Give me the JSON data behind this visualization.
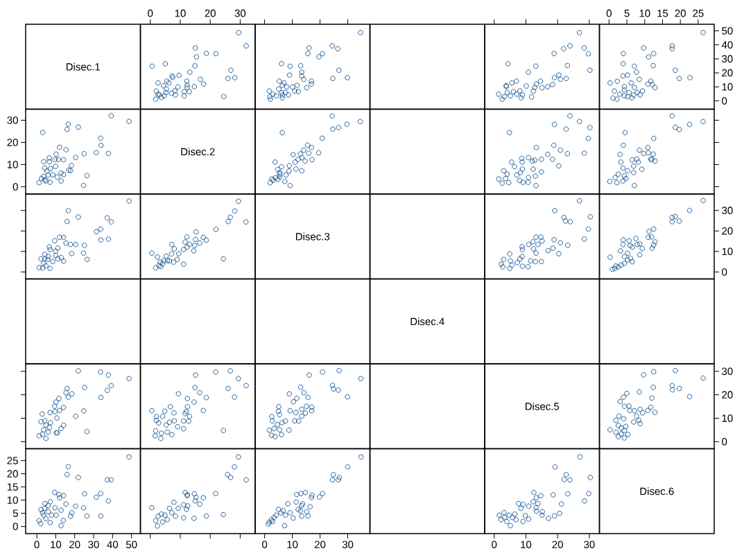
{
  "chart_data": [
    {
      "type": "other",
      "title": "Disec.1"
    },
    {
      "type": "scatter",
      "marker": "circle",
      "color": "#0b4f8f",
      "xlim": [
        -3.3,
        35
      ],
      "ylim": [
        -5.9,
        54.7
      ],
      "xticks": [
        0,
        10,
        20,
        30
      ],
      "tick_labels": "x",
      "x": [
        32.0,
        29.5,
        24.5,
        28.2,
        25.9,
        26.9,
        21.9,
        18.7,
        17.8,
        16.7,
        14.9,
        15.4,
        15.0,
        13.2,
        14.7,
        13.0,
        12.3,
        12.3,
        12.2,
        11.3,
        11.3,
        9.2,
        9.6,
        7.5,
        7.3,
        5.0,
        0.6,
        6.2,
        5.5,
        2.6,
        8.4,
        8.2,
        7.1,
        5.4,
        4.4,
        4.7,
        3.7,
        1.8,
        2.6,
        2.0,
        5.2,
        3.1
      ],
      "values": [
        39.3,
        48.7,
        3.1,
        16.6,
        16.0,
        21.9,
        33.7,
        33.9,
        12.0,
        15.4,
        25.0,
        31.4,
        37.8,
        20.5,
        10.2,
        6.5,
        9.6,
        11.4,
        14.1,
        3.6,
        6.6,
        9.9,
        18.3,
        16.8,
        17.8,
        26.5,
        24.7,
        12.8,
        14.1,
        12.8,
        4.2,
        7.2,
        5.4,
        8.4,
        10.8,
        3.6,
        2.4,
        1.2,
        4.8,
        7.0,
        6.0,
        4.2
      ]
    },
    {
      "type": "scatter",
      "marker": "circle",
      "color": "#0b4f8f",
      "xlim": [
        -3.4,
        38
      ],
      "ylim": [
        -5.9,
        54.7
      ],
      "xticks": [
        0,
        10,
        20,
        30
      ],
      "tick_labels": false,
      "x": [
        34.6,
        29.9,
        24.6,
        26.8,
        26.4,
        24.4,
        20.9,
        19.6,
        15.6,
        16.0,
        16.9,
        16.9,
        15.2,
        14.1,
        13.4,
        13.4,
        13.0,
        11.7,
        12.2,
        10.9,
        10.1,
        9.0,
        9.2,
        6.1,
        8.0,
        7.0,
        5.3,
        6.4,
        8.6,
        6.4,
        6.1,
        4.2,
        2.1,
        1.7,
        3.0,
        5.1,
        1.9,
        7.5,
        6.4
      ],
      "values": [
        48.7,
        16.6,
        16.0,
        21.9,
        37.2,
        39.3,
        33.7,
        31.5,
        33.8,
        37.8,
        12.0,
        14.1,
        9.4,
        15.4,
        17.8,
        20.5,
        25.1,
        11.1,
        6.6,
        7.0,
        9.9,
        18.4,
        24.7,
        26.6,
        10.0,
        12.9,
        14.1,
        11.1,
        4.2,
        2.2,
        5.8,
        3.6,
        1.2,
        7.0,
        4.8,
        8.4,
        3.0,
        6.0,
        4.2
      ]
    },
    {
      "type": "scatter",
      "marker": "circle",
      "color": "#0b4f8f",
      "xlim": [
        -3,
        33.2
      ],
      "ylim": [
        -5.9,
        54.7
      ],
      "xticks": [
        0,
        10,
        20,
        30
      ],
      "tick_labels": false,
      "x": [
        30.2,
        29.7,
        28.4,
        26.9,
        23.9,
        21.9,
        18.9,
        23.1,
        22.7,
        20.9,
        20.4,
        19.0,
        18.4,
        16.9,
        15.1,
        14.6,
        13.3,
        12.4,
        12.8,
        11.8,
        10.8,
        13.1,
        10.1,
        8.5,
        8.1,
        7.1,
        7.0,
        5.6,
        3.8,
        3.8,
        4.3,
        5.1,
        2.5,
        1.4,
        3.2,
        4.1,
        8.9,
        6.1
      ],
      "values": [
        21.9,
        33.6,
        37.8,
        48.7,
        39.3,
        37.2,
        33.8,
        25.2,
        16.0,
        15.4,
        18.5,
        16.6,
        11.7,
        10.1,
        9.4,
        14.1,
        12.0,
        7.0,
        9.6,
        2.8,
        20.5,
        24.8,
        10.6,
        2.2,
        7.2,
        4.8,
        14.1,
        12.8,
        10.8,
        10.3,
        26.5,
        3.6,
        1.2,
        4.8,
        3.0,
        6.0,
        4.2,
        6.6
      ]
    },
    {
      "type": "scatter",
      "marker": "circle",
      "color": "#0b4f8f",
      "xlim": [
        -2.7,
        29.5
      ],
      "ylim": [
        -5.9,
        54.7
      ],
      "xticks": [
        0,
        5,
        10,
        15,
        20,
        25
      ],
      "yticks": [
        0,
        10,
        20,
        30,
        40,
        50
      ],
      "x": [
        26.4,
        22.7,
        19.7,
        18.6,
        17.7,
        17.7,
        12.9,
        12.1,
        11.7,
        10.9,
        12.4,
        11.1,
        12.5,
        9.7,
        9.4,
        8.7,
        8.5,
        7.7,
        7.1,
        6.4,
        7.9,
        7.1,
        6.2,
        5.2,
        3.9,
        4.0,
        4.0,
        2.3,
        0.3,
        4.3,
        4.3,
        2.2,
        1.1,
        1.5,
        4.3,
        3.0,
        5.2,
        5.6,
        6.9
      ],
      "values": [
        48.7,
        16.6,
        16.0,
        21.9,
        37.2,
        39.3,
        9.4,
        11.7,
        14.1,
        12.0,
        25.2,
        31.4,
        33.7,
        37.8,
        7.1,
        4.3,
        15.4,
        20.5,
        24.7,
        2.2,
        6.0,
        9.6,
        12.8,
        18.5,
        17.8,
        26.5,
        33.8,
        14.0,
        12.8,
        10.2,
        7.8,
        1.2,
        2.0,
        7.0,
        3.6,
        4.8,
        3.0,
        6.0,
        4.2
      ]
    },
    {
      "type": "scatter",
      "marker": "circle",
      "color": "#0b4f8f",
      "xlim": [
        -5.9,
        54.7
      ],
      "ylim": [
        -3.3,
        35
      ],
      "yticks": [
        0,
        10,
        20,
        30
      ],
      "tick_labels": "y",
      "x": [
        39.3,
        48.7,
        3.1,
        16.6,
        16.0,
        21.9,
        33.7,
        33.9,
        12.0,
        15.4,
        25.0,
        31.4,
        37.8,
        20.5,
        10.2,
        6.5,
        9.6,
        11.4,
        14.1,
        3.6,
        6.6,
        9.9,
        18.3,
        16.8,
        17.8,
        26.5,
        24.7,
        12.8,
        14.1,
        12.8,
        4.2,
        7.2,
        5.4,
        8.4,
        10.8,
        3.6,
        2.4,
        1.2,
        4.8,
        7.0,
        6.0,
        4.2
      ],
      "values": [
        32.0,
        29.5,
        24.5,
        28.2,
        25.9,
        26.9,
        21.9,
        18.7,
        17.8,
        16.7,
        14.9,
        15.4,
        15.0,
        13.2,
        14.7,
        13.0,
        12.3,
        12.3,
        12.2,
        11.3,
        11.3,
        9.2,
        9.6,
        7.5,
        7.3,
        5.0,
        0.6,
        6.2,
        5.5,
        2.6,
        8.4,
        8.2,
        7.1,
        5.4,
        4.4,
        4.7,
        3.7,
        1.8,
        2.6,
        2.0,
        5.2,
        3.1
      ]
    },
    {
      "type": "other",
      "title": "Disec.2"
    },
    {
      "type": "scatter",
      "marker": "circle",
      "color": "#0b4f8f",
      "xlim": [
        -3.4,
        38
      ],
      "ylim": [
        -3.3,
        35
      ],
      "x": [
        34.5,
        29.7,
        26.7,
        24.6,
        24.4,
        20.8,
        19.5,
        17.1,
        16.9,
        15.5,
        15.9,
        14.6,
        13.5,
        14.1,
        13.4,
        12.9,
        12.1,
        11.3,
        10.3,
        11.0,
        9.2,
        8.9,
        8.8,
        7.3,
        7.7,
        6.1,
        6.4,
        5.4,
        5.4,
        4.8,
        3.8,
        4.8,
        3.1,
        2.0,
        2.6,
        5.6,
        4.0
      ],
      "values": [
        29.4,
        28.2,
        26.7,
        26.0,
        31.9,
        21.9,
        15.3,
        12.2,
        17.7,
        18.7,
        15.1,
        11.6,
        13.1,
        16.5,
        7.2,
        14.8,
        12.3,
        8.0,
        14.5,
        11.1,
        0.5,
        9.5,
        7.1,
        2.4,
        5.3,
        9.0,
        24.4,
        4.5,
        6.4,
        7.8,
        11.1,
        3.3,
        2.9,
        1.8,
        3.5,
        5.7,
        4.1
      ]
    },
    {
      "type": "scatter",
      "marker": "circle",
      "color": "#0b4f8f",
      "xlim": [
        -3,
        33.2
      ],
      "ylim": [
        -3.3,
        35
      ],
      "x": [
        29.7,
        30.2,
        26.9,
        23.9,
        28.4,
        22.7,
        19.0,
        23.1,
        20.9,
        18.8,
        20.4,
        18.4,
        16.9,
        14.9,
        14.9,
        13.3,
        13.2,
        13.0,
        12.3,
        12.0,
        12.8,
        10.7,
        10.8,
        10.8,
        8.8,
        8.7,
        9.1,
        8.0,
        7.1,
        8.3,
        8.9,
        6.4,
        5.5,
        4.8,
        4.6,
        3.6,
        4.1,
        3.0,
        2.5,
        1.4
      ],
      "values": [
        21.8,
        26.7,
        29.4,
        32.0,
        15.1,
        26.0,
        28.1,
        14.9,
        16.5,
        18.7,
        9.4,
        12.4,
        14.6,
        6.7,
        12.4,
        17.7,
        0.5,
        4.8,
        7.9,
        11.6,
        12.0,
        2.0,
        4.1,
        13.1,
        11.1,
        12.8,
        2.0,
        2.8,
        5.3,
        6.4,
        8.0,
        9.1,
        11.1,
        24.4,
        1.8,
        3.7,
        5.7,
        7.2,
        1.6,
        3.5
      ]
    },
    {
      "type": "scatter",
      "marker": "circle",
      "color": "#0b4f8f",
      "xlim": [
        -2.7,
        29.5
      ],
      "ylim": [
        -3.3,
        35
      ],
      "yticks": [
        0,
        10,
        20,
        30
      ],
      "tick_labels": false,
      "x": [
        26.4,
        22.6,
        19.7,
        18.6,
        17.7,
        12.5,
        12.9,
        12.0,
        12.4,
        11.7,
        11.0,
        10.9,
        9.2,
        9.7,
        8.5,
        7.1,
        8.2,
        7.8,
        6.5,
        6.9,
        6.9,
        4.5,
        4.0,
        3.1,
        3.3,
        5.2,
        4.3,
        3.9,
        4.7,
        2.6,
        2.2,
        0.2,
        1.7,
        3.9
      ],
      "values": [
        29.4,
        28.1,
        25.8,
        26.8,
        32.0,
        21.8,
        11.6,
        12.4,
        14.7,
        12.3,
        15.3,
        17.7,
        7.9,
        15.0,
        16.5,
        0.5,
        11.1,
        12.5,
        12.1,
        9.3,
        6.4,
        24.4,
        18.7,
        14.6,
        11.1,
        7.2,
        4.9,
        2.6,
        3.7,
        5.7,
        1.8,
        2.4,
        4.1,
        8.4
      ]
    },
    {
      "type": "scatter",
      "marker": "circle",
      "color": "#0b4f8f",
      "xlim": [
        -5.9,
        54.7
      ],
      "ylim": [
        -3.4,
        38
      ],
      "yticks": [
        0,
        10,
        20,
        30
      ],
      "tick_labels": false,
      "x": [
        48.7,
        16.6,
        16.0,
        21.9,
        37.2,
        39.3,
        33.7,
        31.5,
        33.8,
        37.8,
        12.0,
        14.1,
        9.4,
        15.4,
        17.8,
        20.5,
        25.1,
        11.1,
        6.6,
        7.0,
        9.9,
        18.4,
        24.7,
        26.6,
        10.0,
        12.9,
        14.1,
        11.1,
        4.2,
        2.2,
        5.8,
        3.6,
        1.2,
        7.0,
        4.8,
        8.4,
        3.0,
        6.0,
        4.2
      ],
      "values": [
        34.6,
        29.9,
        24.6,
        26.8,
        26.4,
        24.4,
        20.9,
        19.6,
        15.6,
        16.0,
        16.9,
        16.9,
        15.2,
        14.1,
        13.4,
        13.4,
        13.0,
        11.7,
        12.2,
        10.9,
        10.1,
        9.0,
        9.2,
        6.1,
        8.0,
        7.0,
        5.3,
        6.4,
        8.6,
        6.4,
        6.1,
        4.2,
        2.1,
        1.7,
        3.0,
        5.1,
        1.9,
        7.5,
        6.4
      ]
    },
    {
      "type": "scatter",
      "marker": "circle",
      "color": "#0b4f8f",
      "xlim": [
        -3.3,
        35
      ],
      "ylim": [
        -3.4,
        38
      ],
      "x": [
        29.4,
        28.2,
        26.7,
        26.0,
        31.9,
        21.9,
        15.3,
        12.2,
        17.7,
        18.7,
        15.1,
        11.6,
        13.1,
        16.5,
        7.2,
        14.8,
        12.3,
        8.0,
        14.5,
        11.1,
        0.5,
        9.5,
        7.1,
        2.4,
        5.3,
        9.0,
        24.4,
        4.5,
        6.4,
        7.8,
        11.1,
        3.3,
        2.9,
        1.8,
        3.5,
        5.7,
        4.1
      ],
      "values": [
        34.5,
        29.7,
        26.7,
        24.6,
        24.4,
        20.8,
        19.5,
        17.1,
        16.9,
        15.5,
        15.9,
        14.6,
        13.5,
        14.1,
        13.4,
        12.9,
        12.1,
        11.3,
        10.3,
        11.0,
        9.2,
        8.9,
        8.8,
        7.3,
        7.7,
        6.1,
        6.4,
        5.4,
        5.4,
        4.8,
        3.8,
        4.8,
        3.1,
        2.0,
        2.6,
        5.6,
        4.0
      ]
    },
    {
      "type": "other",
      "title": "Disec.3"
    },
    {
      "type": "scatter",
      "marker": "circle",
      "color": "#0b4f8f",
      "xlim": [
        -3,
        33.2
      ],
      "ylim": [
        -3.4,
        38
      ],
      "x": [
        30.3,
        29.7,
        28.4,
        26.9,
        24.0,
        22.5,
        22.0,
        19.1,
        23.2,
        20.9,
        20.4,
        18.9,
        18.5,
        17.0,
        15.1,
        14.7,
        14.9,
        13.2,
        12.4,
        13.8,
        13.2,
        12.2,
        13.0,
        10.7,
        11.5,
        10.9,
        8.9,
        8.8,
        8.9,
        8.8,
        7.3,
        8.1,
        4.9,
        4.9,
        5.6,
        2.7,
        2.2,
        3.0,
        5.1
      ],
      "values": [
        26.9,
        20.9,
        16.1,
        34.7,
        24.5,
        24.8,
        26.6,
        29.9,
        13.0,
        14.2,
        8.9,
        15.7,
        11.6,
        10.4,
        15.1,
        17.0,
        5.1,
        9.2,
        11.3,
        13.4,
        17.0,
        14.7,
        5.0,
        2.6,
        5.4,
        13.4,
        10.9,
        12.3,
        2.8,
        7.5,
        4.6,
        6.3,
        8.8,
        1.7,
        3.4,
        2.5,
        3.8,
        6.1,
        5.4
      ]
    },
    {
      "type": "scatter",
      "marker": "circle",
      "color": "#0b4f8f",
      "xlim": [
        -2.7,
        29.5
      ],
      "ylim": [
        -3.4,
        38
      ],
      "yticks": [
        0,
        10,
        20,
        30
      ],
      "tick_labels": "y",
      "x": [
        26.4,
        22.6,
        19.7,
        17.7,
        18.6,
        17.7,
        12.5,
        11.2,
        11.9,
        11.0,
        12.9,
        12.5,
        12.1,
        9.3,
        8.6,
        7.9,
        7.5,
        8.6,
        6.5,
        5.9,
        5.6,
        4.0,
        3.9,
        3.2,
        0.3,
        5.2,
        6.0,
        6.5,
        5.2,
        4.3,
        3.4,
        2.6,
        1.6,
        0.9,
        1.9,
        4.3
      ],
      "values": [
        34.8,
        30.0,
        24.8,
        24.5,
        27.0,
        26.6,
        20.9,
        19.8,
        17.1,
        16.9,
        14.7,
        13.1,
        11.6,
        11.4,
        13.7,
        13.4,
        16.4,
        8.4,
        12.1,
        12.9,
        15.2,
        15.7,
        13.4,
        10.3,
        7.2,
        9.2,
        6.7,
        5.0,
        5.9,
        4.2,
        3.4,
        2.5,
        1.7,
        1.3,
        2.9,
        7.5
      ]
    },
    {
      "type": "other",
      "title": "Disec.4"
    },
    {
      "type": "scatter",
      "marker": "circle",
      "color": "#0b4f8f",
      "xlim": [
        -5.9,
        54.7
      ],
      "ylim": [
        -3,
        33.2
      ],
      "yticks": [
        0,
        10,
        20,
        30
      ],
      "tick_labels": false,
      "x": [
        21.9,
        33.6,
        37.8,
        48.7,
        39.3,
        37.2,
        33.8,
        25.2,
        16.0,
        15.4,
        18.5,
        16.6,
        11.7,
        10.1,
        9.4,
        14.1,
        12.0,
        7.0,
        9.6,
        2.8,
        20.5,
        24.8,
        10.6,
        2.2,
        7.2,
        4.8,
        14.1,
        12.8,
        10.8,
        10.3,
        26.5,
        3.6,
        1.2,
        4.8,
        3.0,
        6.0,
        4.2,
        6.6
      ],
      "values": [
        30.2,
        29.7,
        28.4,
        26.9,
        23.9,
        21.9,
        18.9,
        23.1,
        22.7,
        20.9,
        20.4,
        19.0,
        18.4,
        16.9,
        15.1,
        14.6,
        13.3,
        12.4,
        12.8,
        11.8,
        10.8,
        13.1,
        10.1,
        8.5,
        8.1,
        7.1,
        7.0,
        5.6,
        3.8,
        3.8,
        4.3,
        5.1,
        2.5,
        1.4,
        3.2,
        4.1,
        8.9,
        6.1
      ]
    },
    {
      "type": "scatter",
      "marker": "circle",
      "color": "#0b4f8f",
      "xlim": [
        -3.3,
        35
      ],
      "ylim": [
        -3,
        33.2
      ],
      "x": [
        21.8,
        26.7,
        29.4,
        32.0,
        15.1,
        26.0,
        28.1,
        14.9,
        16.5,
        18.7,
        9.4,
        12.4,
        14.6,
        6.7,
        12.4,
        17.7,
        0.5,
        4.8,
        7.9,
        11.6,
        12.0,
        2.0,
        4.1,
        13.1,
        11.1,
        12.8,
        2.0,
        2.8,
        5.3,
        6.4,
        8.0,
        9.1,
        11.1,
        24.4,
        1.8,
        3.7,
        5.7,
        7.2,
        1.6,
        3.5
      ],
      "values": [
        29.7,
        30.2,
        26.9,
        23.9,
        28.4,
        22.7,
        19.0,
        23.1,
        20.9,
        18.8,
        20.4,
        18.4,
        16.9,
        14.9,
        14.9,
        13.3,
        13.2,
        13.0,
        12.3,
        12.0,
        12.8,
        10.7,
        10.8,
        10.8,
        8.8,
        8.7,
        9.1,
        8.0,
        7.1,
        8.3,
        8.9,
        6.4,
        5.5,
        4.8,
        4.6,
        3.6,
        4.1,
        3.0,
        2.5,
        1.4
      ]
    },
    {
      "type": "scatter",
      "marker": "circle",
      "color": "#0b4f8f",
      "xlim": [
        -3.4,
        38
      ],
      "ylim": [
        -3,
        33.2
      ],
      "x": [
        26.9,
        20.9,
        16.1,
        34.7,
        24.5,
        24.8,
        26.6,
        29.9,
        13.0,
        14.2,
        8.9,
        15.7,
        11.6,
        10.4,
        15.1,
        17.0,
        5.1,
        9.2,
        11.3,
        13.4,
        17.0,
        14.7,
        5.0,
        2.6,
        5.4,
        13.4,
        10.9,
        12.3,
        2.8,
        7.5,
        4.6,
        6.3,
        8.8,
        1.7,
        3.4,
        2.5,
        3.8,
        6.1,
        5.4
      ],
      "values": [
        30.3,
        29.7,
        28.4,
        26.9,
        24.0,
        22.5,
        22.0,
        19.1,
        23.2,
        20.9,
        20.4,
        18.9,
        18.5,
        17.0,
        15.1,
        14.7,
        14.9,
        13.2,
        12.4,
        13.8,
        13.2,
        12.2,
        13.0,
        10.7,
        11.5,
        10.9,
        8.9,
        8.8,
        8.9,
        8.8,
        7.3,
        8.1,
        4.9,
        4.9,
        5.6,
        2.7,
        2.2,
        3.0,
        5.1
      ]
    },
    {
      "type": "other",
      "title": "Disec.5"
    },
    {
      "type": "scatter",
      "marker": "circle",
      "color": "#0b4f8f",
      "xlim": [
        -2.7,
        29.5
      ],
      "ylim": [
        -3,
        33.2
      ],
      "yticks": [
        0,
        10,
        20,
        30
      ],
      "tick_labels": "y",
      "x": [
        26.4,
        22.6,
        18.6,
        19.7,
        17.8,
        17.7,
        12.9,
        11.7,
        12.0,
        12.4,
        12.5,
        9.7,
        10.9,
        9.4,
        8.7,
        8.5,
        8.7,
        8.4,
        7.7,
        7.1,
        6.9,
        5.8,
        5.6,
        4.3,
        5.0,
        4.0,
        3.1,
        4.1,
        2.8,
        1.9,
        0.3,
        4.3,
        2.6,
        3.4,
        4.3,
        4.7,
        1.9,
        2.6,
        3.4,
        5.3
      ],
      "values": [
        27.1,
        19.2,
        30.3,
        22.7,
        22.1,
        23.9,
        12.5,
        14.7,
        18.6,
        23.2,
        29.8,
        28.5,
        13.3,
        12.3,
        13.8,
        21.2,
        7.7,
        9.1,
        10.9,
        13.2,
        8.4,
        13.3,
        15.2,
        15.1,
        20.6,
        19.0,
        17.1,
        9.8,
        10.9,
        9.1,
        5.1,
        1.6,
        2.2,
        3.3,
        4.7,
        6.5,
        4.0,
        6.9,
        5.8,
        3.1
      ]
    },
    {
      "type": "scatter",
      "marker": "circle",
      "color": "#0b4f8f",
      "xlim": [
        -5.9,
        54.7
      ],
      "ylim": [
        -2.7,
        29.5
      ],
      "xticks": [
        0,
        10,
        20,
        30,
        40,
        50
      ],
      "yticks": [
        0,
        5,
        10,
        15,
        20,
        25
      ],
      "x": [
        48.7,
        16.6,
        16.0,
        21.9,
        37.2,
        39.3,
        9.4,
        11.7,
        14.1,
        12.0,
        25.2,
        31.4,
        33.7,
        37.8,
        7.1,
        4.3,
        15.4,
        20.5,
        24.7,
        2.2,
        6.0,
        9.6,
        12.8,
        18.5,
        17.8,
        26.5,
        33.8,
        14.0,
        12.8,
        10.2,
        7.8,
        1.2,
        2.0,
        7.0,
        3.6,
        4.8,
        3.0,
        6.0,
        4.2
      ],
      "values": [
        26.4,
        22.7,
        19.7,
        18.6,
        17.7,
        17.7,
        12.9,
        12.1,
        11.7,
        10.9,
        12.4,
        11.1,
        12.5,
        9.7,
        9.4,
        8.7,
        8.5,
        7.7,
        7.1,
        6.4,
        7.9,
        7.1,
        6.2,
        5.2,
        3.9,
        4.0,
        4.0,
        2.3,
        0.3,
        4.3,
        4.3,
        2.2,
        1.1,
        1.5,
        4.3,
        3.0,
        5.2,
        5.6,
        6.9
      ]
    },
    {
      "type": "scatter",
      "marker": "circle",
      "color": "#0b4f8f",
      "xlim": [
        -3.3,
        35
      ],
      "ylim": [
        -2.7,
        29.5
      ],
      "xticks": [
        0,
        10,
        20,
        30
      ],
      "tick_labels": false,
      "x": [
        29.4,
        28.1,
        25.8,
        26.8,
        32.0,
        21.8,
        11.6,
        12.4,
        14.7,
        12.3,
        15.3,
        17.7,
        7.9,
        15.0,
        16.5,
        0.5,
        11.1,
        12.5,
        12.1,
        9.3,
        6.4,
        24.4,
        18.7,
        14.6,
        11.1,
        7.2,
        4.9,
        2.6,
        3.7,
        5.7,
        1.8,
        2.4,
        4.1,
        8.4
      ],
      "values": [
        26.4,
        22.6,
        19.7,
        18.6,
        17.7,
        12.5,
        12.9,
        12.0,
        12.4,
        11.7,
        11.0,
        10.9,
        9.2,
        9.7,
        8.5,
        7.1,
        8.2,
        7.8,
        6.5,
        6.9,
        6.9,
        4.5,
        4.0,
        3.1,
        3.3,
        5.2,
        4.3,
        3.9,
        4.7,
        2.6,
        2.2,
        0.2,
        1.7,
        3.9
      ]
    },
    {
      "type": "scatter",
      "marker": "circle",
      "color": "#0b4f8f",
      "xlim": [
        -3.4,
        38
      ],
      "ylim": [
        -2.7,
        29.5
      ],
      "xticks": [
        0,
        10,
        20,
        30
      ],
      "tick_labels": "x",
      "x": [
        34.8,
        30.0,
        24.8,
        24.5,
        27.0,
        26.6,
        20.9,
        19.8,
        17.1,
        16.9,
        14.7,
        13.1,
        11.6,
        11.4,
        13.7,
        13.4,
        16.4,
        8.4,
        12.1,
        12.9,
        15.2,
        15.7,
        13.4,
        10.3,
        7.2,
        9.2,
        6.7,
        5.0,
        5.9,
        4.2,
        3.4,
        2.5,
        1.7,
        1.3,
        2.9,
        7.5
      ],
      "values": [
        26.4,
        22.6,
        19.7,
        17.7,
        18.6,
        17.7,
        12.5,
        11.2,
        11.9,
        11.0,
        12.9,
        12.5,
        12.1,
        9.3,
        8.6,
        7.9,
        7.5,
        8.6,
        6.5,
        5.9,
        5.6,
        4.0,
        3.9,
        3.2,
        0.3,
        5.2,
        6.0,
        6.5,
        5.2,
        4.3,
        3.4,
        2.6,
        1.6,
        0.9,
        1.9,
        4.3
      ]
    },
    {
      "type": "scatter",
      "marker": "circle",
      "color": "#0b4f8f",
      "xlim": [
        -3,
        33.2
      ],
      "ylim": [
        -2.7,
        29.5
      ],
      "xticks": [
        0,
        10,
        20,
        30
      ],
      "tick_labels": "x",
      "x": [
        27.1,
        19.2,
        30.3,
        22.7,
        22.1,
        23.9,
        12.5,
        14.7,
        18.6,
        23.2,
        29.8,
        28.5,
        13.3,
        12.3,
        13.8,
        21.2,
        7.7,
        9.1,
        10.9,
        13.2,
        8.4,
        13.3,
        15.2,
        15.1,
        20.6,
        19.0,
        17.1,
        9.8,
        10.9,
        9.1,
        5.1,
        1.6,
        2.2,
        3.3,
        4.7,
        6.5,
        4.0,
        6.9,
        5.8,
        3.1
      ],
      "values": [
        26.4,
        22.6,
        18.6,
        19.7,
        17.8,
        17.7,
        12.9,
        11.7,
        12.0,
        12.4,
        12.5,
        9.7,
        10.9,
        9.4,
        8.7,
        8.5,
        8.7,
        8.4,
        7.7,
        7.1,
        6.9,
        5.8,
        5.6,
        4.3,
        5.0,
        4.0,
        3.1,
        4.1,
        2.8,
        1.9,
        0.3,
        4.3,
        2.6,
        3.4,
        4.3,
        4.7,
        1.9,
        2.6,
        3.4,
        5.3
      ]
    },
    {
      "type": "other",
      "title": "Disec.6"
    }
  ]
}
